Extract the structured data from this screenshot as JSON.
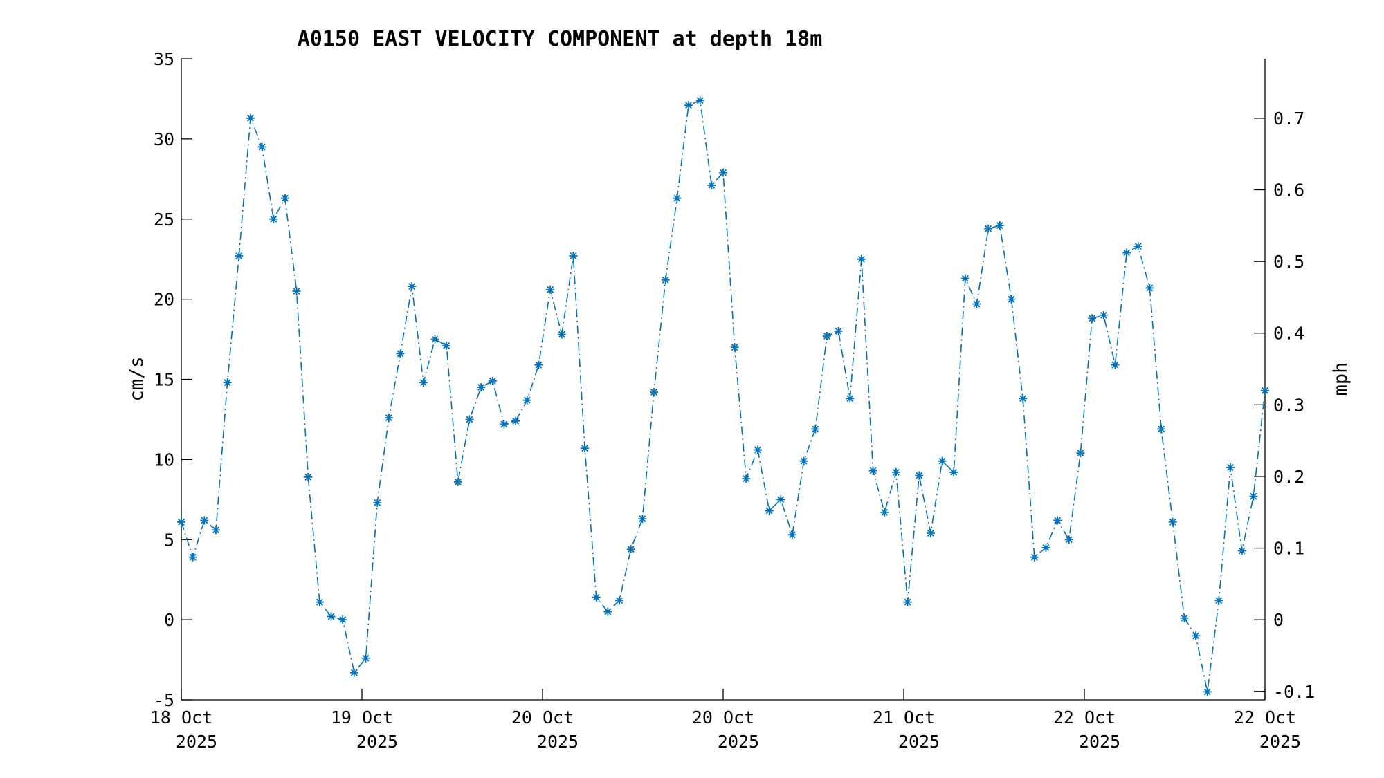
{
  "chart_data": {
    "type": "line",
    "title": "A0150 EAST VELOCITY COMPONENT at depth 18m",
    "ylabel": "cm/s",
    "ylabel_right": "mph",
    "ylim": [
      -5,
      35
    ],
    "yticks": [
      -5,
      0,
      5,
      10,
      15,
      20,
      25,
      30,
      35
    ],
    "ylim_right": [
      -0.1118,
      0.7829
    ],
    "yticks_right": [
      -0.1,
      0,
      0.1,
      0.2,
      0.3,
      0.4,
      0.5,
      0.6,
      0.7
    ],
    "yticks_right_labels": [
      "-0.1",
      "0",
      "0.1",
      "0.2",
      "0.3",
      "0.4",
      "0.5",
      "0.6",
      "0.7"
    ],
    "x_tick_labels": [
      {
        "day": "18 Oct",
        "year": "2025"
      },
      {
        "day": "19 Oct",
        "year": "2025"
      },
      {
        "day": "20 Oct",
        "year": "2025"
      },
      {
        "day": "20 Oct",
        "year": "2025"
      },
      {
        "day": "21 Oct",
        "year": "2025"
      },
      {
        "day": "22 Oct",
        "year": "2025"
      },
      {
        "day": "22 Oct",
        "year": "2025"
      }
    ],
    "grid": false,
    "line_style": "dash-dot",
    "marker": "asterisk",
    "series_color": "#0072BD",
    "series": [
      {
        "values": [
          6.1,
          3.9,
          6.2,
          5.6,
          14.8,
          22.7,
          31.3,
          29.5,
          25.0,
          26.3,
          20.5,
          8.9,
          1.1,
          0.2,
          0.0,
          -3.3,
          -2.4,
          7.3,
          12.6,
          16.6,
          20.8,
          14.8,
          17.5,
          17.1,
          8.6,
          12.5,
          14.5,
          14.9,
          12.2,
          12.4,
          13.7,
          15.9,
          20.6,
          17.8,
          22.7,
          10.7,
          1.4,
          0.5,
          1.2,
          4.4,
          6.3,
          14.2,
          21.2,
          26.3,
          32.1,
          32.4,
          27.1,
          27.9,
          17.0,
          8.8,
          10.6,
          6.8,
          7.5,
          5.3,
          9.9,
          11.9,
          17.7,
          18.0,
          13.8,
          22.5,
          9.3,
          6.7,
          9.2,
          1.1,
          9.0,
          5.4,
          9.9,
          9.2,
          21.3,
          19.7,
          24.4,
          24.6,
          20.0,
          13.8,
          3.9,
          4.5,
          6.2,
          5.0,
          10.4,
          18.8,
          19.0,
          15.9,
          22.9,
          23.3,
          20.7,
          11.9,
          6.1,
          0.1,
          -1.0,
          -4.5,
          1.2,
          9.5,
          4.3,
          7.7,
          14.3
        ]
      }
    ]
  }
}
